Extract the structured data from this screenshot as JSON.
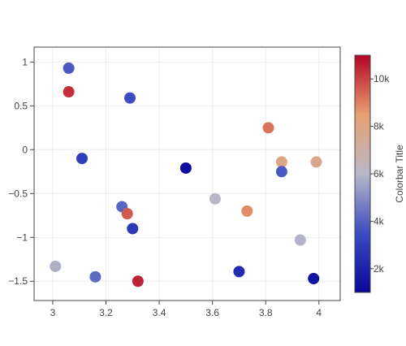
{
  "chart_data": {
    "type": "scatter",
    "title": "",
    "xlabel": "",
    "ylabel": "",
    "xlim": [
      2.93,
      4.08
    ],
    "ylim": [
      -1.72,
      1.17
    ],
    "x_ticks": [
      3,
      3.2,
      3.4,
      3.6,
      3.8,
      4
    ],
    "x_tick_labels": [
      "3",
      "3.2",
      "3.4",
      "3.6",
      "3.8",
      "4"
    ],
    "y_ticks": [
      1,
      0.5,
      0,
      -0.5,
      -1,
      -1.5
    ],
    "y_tick_labels": [
      "1",
      "0.5",
      "0",
      "−0.5",
      "−1",
      "−1.5"
    ],
    "grid": true,
    "marker_color_scale": "coolwarm",
    "scale_colors": [
      "#08089c",
      "#3b4cc0",
      "#b8b8c8",
      "#e8a070",
      "#b40426"
    ],
    "colorbar": {
      "title": "Colorbar Title",
      "range": [
        1000,
        11000
      ],
      "ticks": [
        2000,
        4000,
        6000,
        8000,
        10000
      ],
      "tick_labels": [
        "2k",
        "4k",
        "6k",
        "8k",
        "10k"
      ]
    },
    "points": [
      {
        "x": 3.06,
        "y": 0.93,
        "c": 3800
      },
      {
        "x": 3.06,
        "y": 0.66,
        "c": 10300
      },
      {
        "x": 3.29,
        "y": 0.59,
        "c": 3500
      },
      {
        "x": 3.11,
        "y": -0.1,
        "c": 3000
      },
      {
        "x": 3.5,
        "y": -0.21,
        "c": 1200
      },
      {
        "x": 3.81,
        "y": 0.25,
        "c": 9200
      },
      {
        "x": 3.86,
        "y": -0.14,
        "c": 7900
      },
      {
        "x": 3.99,
        "y": -0.14,
        "c": 7700
      },
      {
        "x": 3.86,
        "y": -0.25,
        "c": 3800
      },
      {
        "x": 3.61,
        "y": -0.56,
        "c": 6100
      },
      {
        "x": 3.26,
        "y": -0.65,
        "c": 4100
      },
      {
        "x": 3.28,
        "y": -0.73,
        "c": 9600
      },
      {
        "x": 3.3,
        "y": -0.9,
        "c": 2800
      },
      {
        "x": 3.73,
        "y": -0.7,
        "c": 8800
      },
      {
        "x": 3.93,
        "y": -1.03,
        "c": 5900
      },
      {
        "x": 3.01,
        "y": -1.33,
        "c": 5800
      },
      {
        "x": 3.16,
        "y": -1.45,
        "c": 4200
      },
      {
        "x": 3.32,
        "y": -1.5,
        "c": 10500
      },
      {
        "x": 3.7,
        "y": -1.39,
        "c": 2300
      },
      {
        "x": 3.98,
        "y": -1.47,
        "c": 1400
      }
    ]
  }
}
